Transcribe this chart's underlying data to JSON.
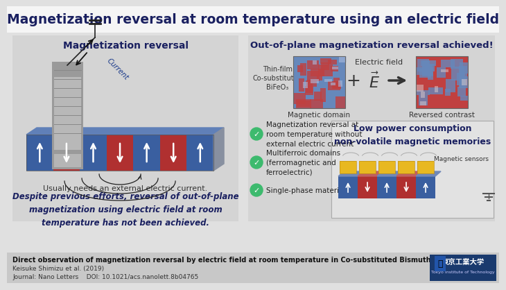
{
  "title": "Magnetization reversal at room temperature using an electric field",
  "bg_color": "#e0e0e0",
  "title_bg": "#f5f5f5",
  "left_panel_bg": "#d4d4d4",
  "right_panel_bg": "#d4d4d4",
  "footer_bg": "#c8c8c8",
  "left_panel_title": "Magnetization reversal",
  "left_caption": "Usually needs an external electric current.",
  "left_bold_text": "Despite previous efforts, reversal of out-of-plane\nmagnetization using electric field at room\ntemperature has not been achieved.",
  "right_panel_title": "Out-of-plane magnetization reversal achieved!",
  "label_magnetic_domain": "Magnetic domain",
  "label_reversed_contrast": "Reversed contrast",
  "label_electric_field": "Electric field",
  "label_thin_film": "Thin-film\nCo-substituted\nBiFeO₃",
  "check1": "Magnetization reversal at\nroom temperature without\nexternal electric current",
  "check2": "Multiferroic domains\n(ferromagnetic and\nferroelectric)",
  "check3": "Single-phase material",
  "right_box_title": "Low power consumption\nnon-volatile magnetic memories",
  "label_magnetic_sensors": "Magnetic sensors",
  "footer_title": "Direct observation of magnetization reversal by electric field at room temperature in Co-substituted Bismuth ferrite thin film",
  "footer_author": "Keisuke Shimizu et al. (2019)",
  "footer_journal": "Journal: Nano Letters    DOI: 10.1021/acs.nanolett.8b04765",
  "titech_navy": "#1a3a6e",
  "green_check": "#3dba6e",
  "blue_stripe": "#3a5fa0",
  "red_stripe": "#b03030",
  "yellow_block": "#e8b820",
  "text_dark": "#1a2060",
  "text_medium": "#333333"
}
